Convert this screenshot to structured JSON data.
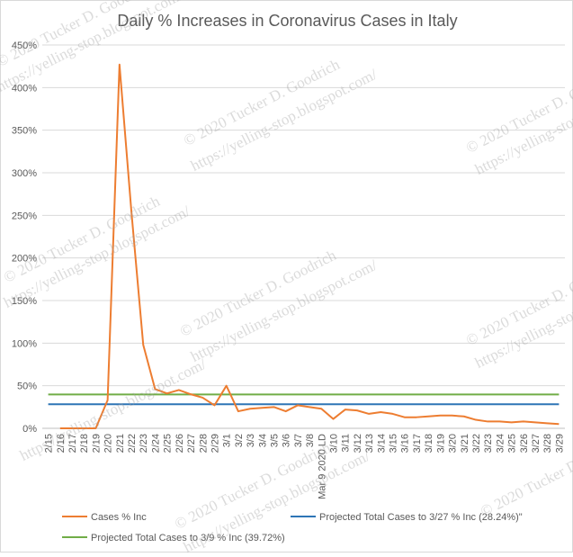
{
  "chart_data": {
    "type": "line",
    "title": "Daily % Increases in Coronavirus Cases in Italy",
    "xlabel": "",
    "ylabel": "",
    "ylim": [
      0,
      450
    ],
    "yticks": [
      "0%",
      "50%",
      "100%",
      "150%",
      "200%",
      "250%",
      "300%",
      "350%",
      "400%",
      "450%"
    ],
    "categories": [
      "2/15",
      "2/16",
      "2/17",
      "2/18",
      "2/19",
      "2/20",
      "2/21",
      "2/22",
      "2/23",
      "2/24",
      "2/25",
      "2/26",
      "2/27",
      "2/28",
      "2/29",
      "3/1",
      "3/2",
      "3/3",
      "3/4",
      "3/5",
      "3/6",
      "3/7",
      "3/8",
      "Mar 9 2020 LD",
      "3/10",
      "3/11",
      "3/12",
      "3/13",
      "3/14",
      "3/15",
      "3/16",
      "3/17",
      "3/18",
      "3/19",
      "3/20",
      "3/21",
      "3/22",
      "3/23",
      "3/24",
      "3/25",
      "3/26",
      "3/27",
      "3/28",
      "3/29"
    ],
    "series": [
      {
        "name": "Cases % Inc",
        "color": "#ed7d31",
        "values": [
          null,
          0,
          0,
          0,
          0,
          33,
          427,
          255,
          98,
          46,
          41,
          45,
          40,
          36,
          27,
          50,
          20,
          23,
          24,
          25,
          20,
          27,
          25,
          23,
          11,
          22,
          21,
          17,
          19,
          17,
          13,
          13,
          14,
          15,
          15,
          14,
          10,
          8,
          8,
          7,
          8,
          7,
          6,
          5
        ]
      },
      {
        "name": "Projected Total Cases to 3/27 % Inc (28.24%)\"",
        "color": "#2e75b6",
        "constant": 28.24
      },
      {
        "name": "Projected Total Cases to 3/9 % Inc (39.72%)",
        "color": "#70ad47",
        "constant": 39.72
      }
    ],
    "legend": "bottom",
    "grid": true,
    "watermark": [
      "© 2020 Tucker D. Goodrich",
      "https://yelling-stop.blogspot.com/"
    ]
  }
}
